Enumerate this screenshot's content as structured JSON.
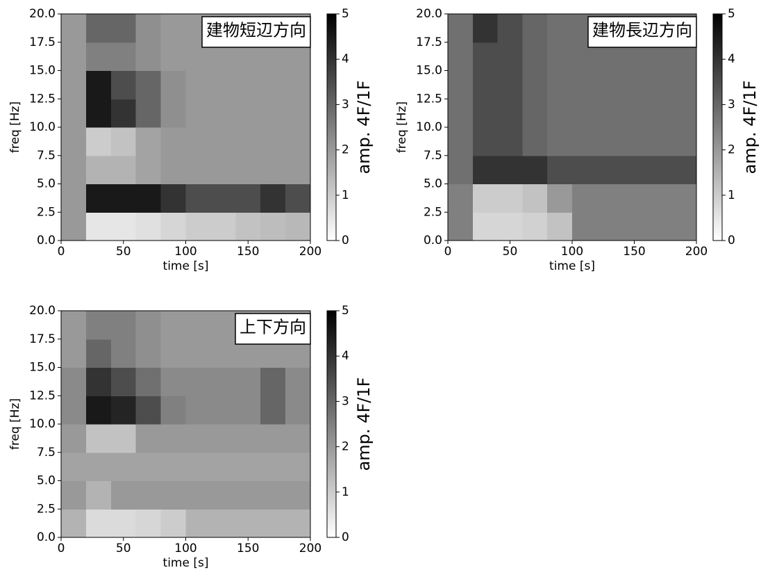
{
  "chart_data": [
    {
      "type": "heatmap",
      "annotation": "建物短辺方向",
      "x_label": "time [s]",
      "y_label": "freq [Hz]",
      "colorbar_label": "amp. 4F/1F",
      "colormap": "gray_r",
      "xlim": [
        0,
        200
      ],
      "ylim": [
        0,
        20
      ],
      "zlim": [
        0,
        5
      ],
      "xticks": [
        0,
        50,
        100,
        150,
        200
      ],
      "yticks": [
        {
          "value": 0,
          "label": "0.0"
        },
        {
          "value": 2.5,
          "label": "2.5"
        },
        {
          "value": 5,
          "label": "5.0"
        },
        {
          "value": 7.5,
          "label": "7.5"
        },
        {
          "value": 10,
          "label": "10.0"
        },
        {
          "value": 12.5,
          "label": "12.5"
        },
        {
          "value": 15,
          "label": "15.0"
        },
        {
          "value": 17.5,
          "label": "17.5"
        },
        {
          "value": 20,
          "label": "20.0"
        }
      ],
      "zticks": [
        0,
        1,
        2,
        3,
        4,
        5
      ],
      "z": [
        [
          2,
          0.5,
          0.5,
          0.6,
          0.8,
          1,
          1,
          1.2,
          1.3,
          1.4
        ],
        [
          2,
          4.5,
          4.5,
          4.5,
          4,
          3.5,
          3.5,
          3.5,
          4,
          3.5
        ],
        [
          2,
          1.5,
          1.5,
          1.8,
          2,
          2,
          2,
          2,
          2,
          2
        ],
        [
          2,
          1,
          1.2,
          1.8,
          2,
          2,
          2,
          2,
          2,
          2
        ],
        [
          2,
          4.5,
          4,
          3,
          2.2,
          2,
          2,
          2,
          2,
          2
        ],
        [
          2,
          4.5,
          3.5,
          3,
          2.2,
          2,
          2,
          2,
          2,
          2
        ],
        [
          2,
          2.5,
          2.5,
          2.2,
          2,
          2,
          2,
          2,
          2,
          2
        ],
        [
          2,
          3,
          3,
          2.2,
          2,
          2,
          2,
          2,
          2,
          2
        ]
      ]
    },
    {
      "type": "heatmap",
      "annotation": "建物長辺方向",
      "x_label": "time [s]",
      "y_label": "freq [Hz]",
      "colorbar_label": "amp. 4F/1F",
      "colormap": "gray_r",
      "xlim": [
        0,
        200
      ],
      "ylim": [
        0,
        20
      ],
      "zlim": [
        0,
        5
      ],
      "xticks": [
        0,
        50,
        100,
        150,
        200
      ],
      "yticks": [
        {
          "value": 0,
          "label": "0.0"
        },
        {
          "value": 2.5,
          "label": "2.5"
        },
        {
          "value": 5,
          "label": "5.0"
        },
        {
          "value": 7.5,
          "label": "7.5"
        },
        {
          "value": 10,
          "label": "10.0"
        },
        {
          "value": 12.5,
          "label": "12.5"
        },
        {
          "value": 15,
          "label": "15.0"
        },
        {
          "value": 17.5,
          "label": "17.5"
        },
        {
          "value": 20,
          "label": "20.0"
        }
      ],
      "zticks": [
        0,
        1,
        2,
        3,
        4,
        5
      ],
      "z": [
        [
          2.5,
          0.8,
          0.8,
          0.9,
          1.2,
          2.5,
          2.5,
          2.5,
          2.5,
          2.5
        ],
        [
          2.5,
          1,
          1,
          1.2,
          2,
          2.5,
          2.5,
          2.5,
          2.5,
          2.5
        ],
        [
          2.8,
          4,
          4,
          4,
          3.5,
          3.5,
          3.5,
          3.5,
          3.5,
          3.5
        ],
        [
          2.8,
          3.5,
          3.5,
          3,
          2.8,
          2.8,
          2.8,
          2.8,
          2.8,
          2.8
        ],
        [
          2.8,
          3.5,
          3.5,
          3,
          2.8,
          2.8,
          2.8,
          2.8,
          2.8,
          2.8
        ],
        [
          2.8,
          3.5,
          3.5,
          3,
          2.8,
          2.8,
          2.8,
          2.8,
          2.8,
          2.8
        ],
        [
          2.8,
          3.5,
          3.5,
          3,
          2.8,
          2.8,
          2.8,
          2.8,
          2.8,
          2.8
        ],
        [
          2.8,
          4,
          3.5,
          3,
          2.8,
          2.8,
          2.8,
          2.8,
          2.8,
          2.8
        ]
      ]
    },
    {
      "type": "heatmap",
      "annotation": "上下方向",
      "x_label": "time [s]",
      "y_label": "freq [Hz]",
      "colorbar_label": "amp. 4F/1F",
      "colormap": "gray_r",
      "xlim": [
        0,
        200
      ],
      "ylim": [
        0,
        20
      ],
      "zlim": [
        0,
        5
      ],
      "xticks": [
        0,
        50,
        100,
        150,
        200
      ],
      "yticks": [
        {
          "value": 0,
          "label": "0.0"
        },
        {
          "value": 2.5,
          "label": "2.5"
        },
        {
          "value": 5,
          "label": "5.0"
        },
        {
          "value": 7.5,
          "label": "7.5"
        },
        {
          "value": 10,
          "label": "10.0"
        },
        {
          "value": 12.5,
          "label": "12.5"
        },
        {
          "value": 15,
          "label": "15.0"
        },
        {
          "value": 17.5,
          "label": "17.5"
        },
        {
          "value": 20,
          "label": "20.0"
        }
      ],
      "zticks": [
        0,
        1,
        2,
        3,
        4,
        5
      ],
      "z": [
        [
          1.5,
          0.7,
          0.7,
          0.8,
          1,
          1.5,
          1.5,
          1.5,
          1.5,
          1.5
        ],
        [
          2,
          1.5,
          2,
          2,
          2,
          2,
          2,
          2,
          2,
          2
        ],
        [
          1.8,
          1.8,
          1.8,
          1.8,
          1.8,
          1.8,
          1.8,
          1.8,
          1.8,
          1.8
        ],
        [
          2,
          1.2,
          1.2,
          2,
          2,
          2,
          2,
          2,
          2,
          2
        ],
        [
          2.3,
          4.5,
          4.3,
          3.5,
          2.5,
          2.3,
          2.3,
          2.3,
          3,
          2.3
        ],
        [
          2.3,
          4,
          3.5,
          2.8,
          2.3,
          2.3,
          2.3,
          2.3,
          3,
          2.3
        ],
        [
          2,
          3,
          2.5,
          2.2,
          2,
          2,
          2,
          2,
          2,
          2
        ],
        [
          2,
          2.5,
          2.5,
          2.2,
          2,
          2,
          2,
          2,
          2,
          2
        ]
      ]
    }
  ]
}
